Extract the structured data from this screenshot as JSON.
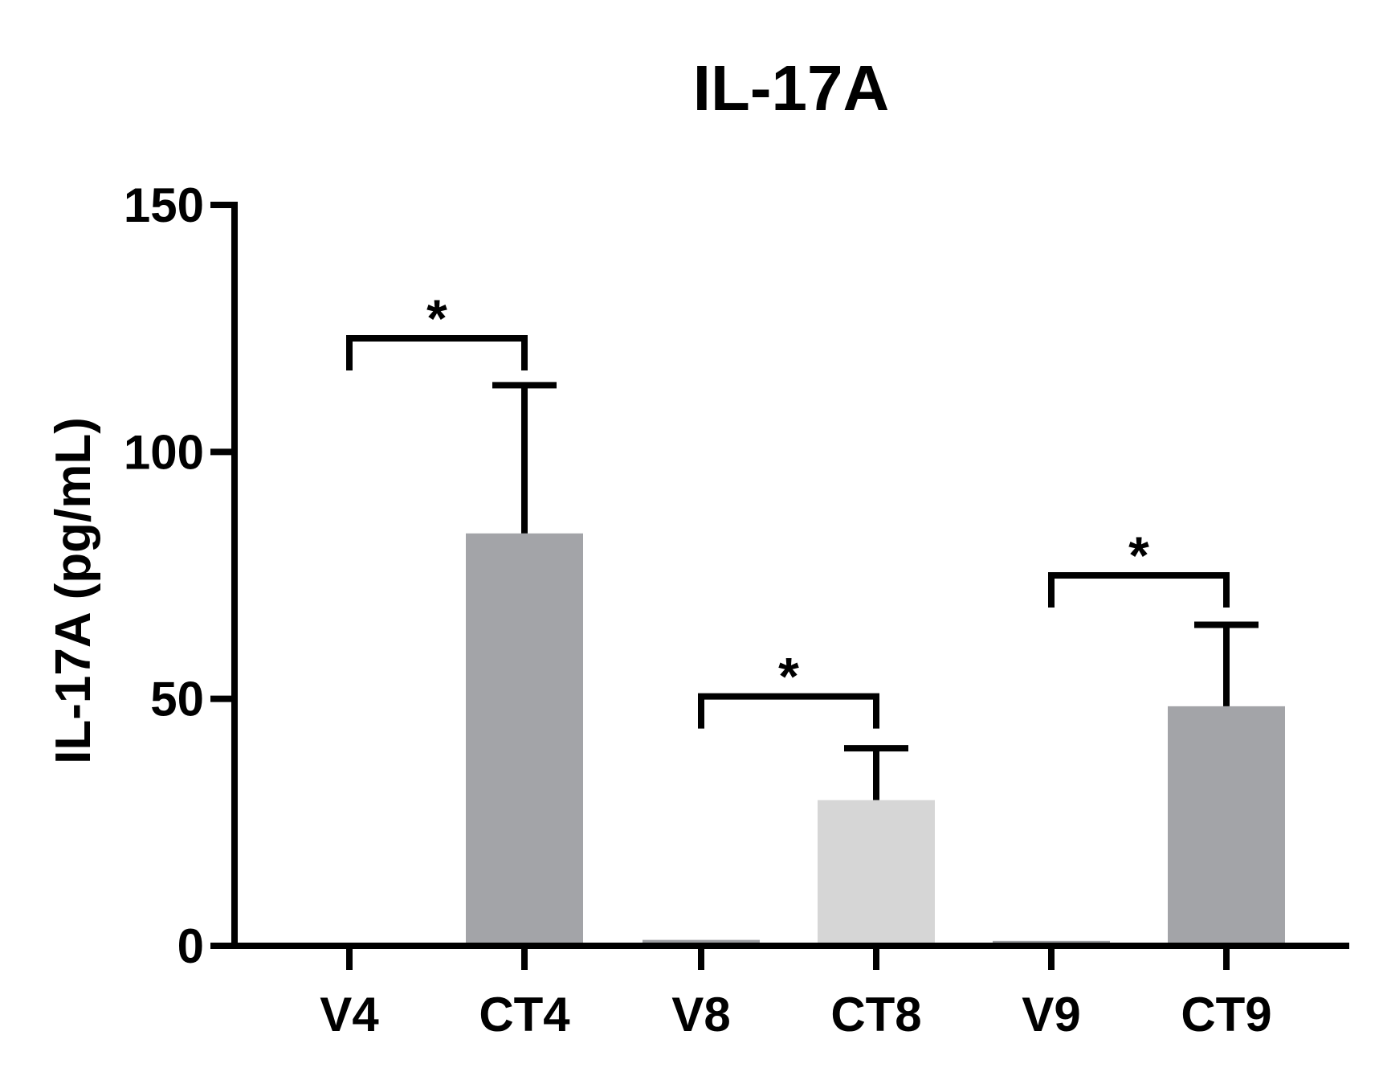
{
  "chart_data": {
    "type": "bar",
    "title": "IL-17A",
    "xlabel": "",
    "ylabel": "IL-17A (pg/mL)",
    "ylim": [
      0,
      150
    ],
    "yticks": [
      0,
      50,
      100,
      150
    ],
    "yticks_text": [
      "0",
      "50",
      "100",
      "150"
    ],
    "categories": [
      "V4",
      "CT4",
      "V8",
      "CT8",
      "V9",
      "CT9"
    ],
    "values": [
      0.5,
      83.5,
      1.2,
      29.5,
      1.0,
      48.5
    ],
    "errors": [
      0,
      30,
      0,
      10.5,
      0,
      16.5
    ],
    "colors": [
      "#9d9ea2",
      "#a3a4a8",
      "#9d9ea2",
      "#d6d6d6",
      "#9d9ea2",
      "#a3a4a8"
    ],
    "comparisons": [
      {
        "from": "V4",
        "to": "CT4",
        "label": "*",
        "y": 123
      },
      {
        "from": "V8",
        "to": "CT8",
        "label": "*",
        "y": 50.5
      },
      {
        "from": "V9",
        "to": "CT9",
        "label": "*",
        "y": 75
      }
    ]
  }
}
